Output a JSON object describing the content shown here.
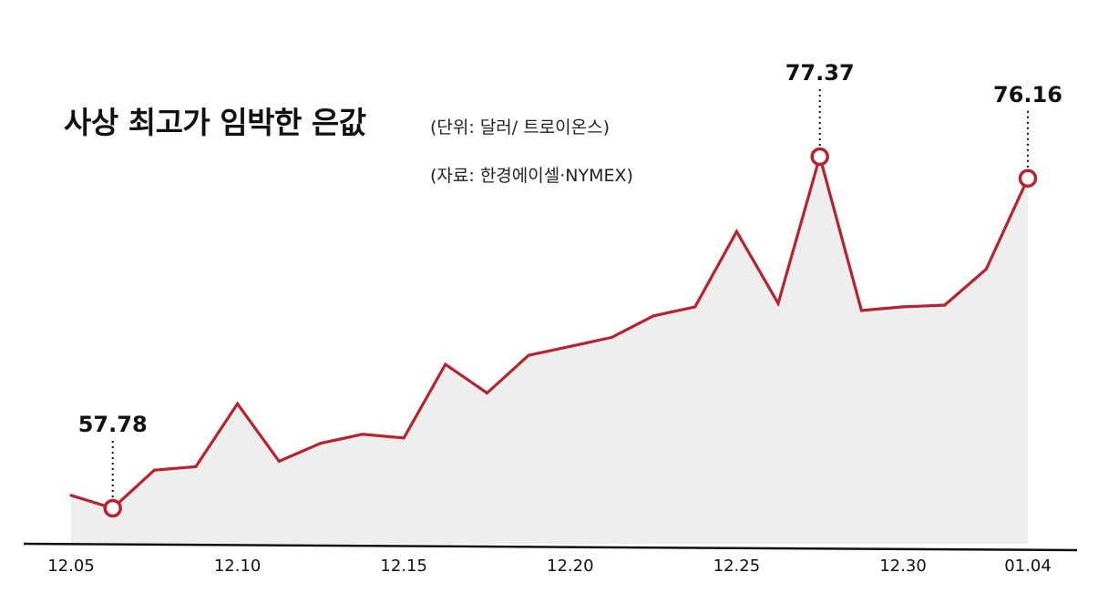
{
  "chart_data": {
    "type": "area",
    "title": "사상 최고가 임박한 은값",
    "unit_note": "(단위: 달러/ 트로이온스)",
    "source_note": "(자료: 한경에이셀·NYMEX)",
    "x_tick_labels": [
      "12.05",
      "12.10",
      "12.15",
      "12.20",
      "12.25",
      "12.30",
      "01.04"
    ],
    "series": [
      {
        "values": [
          58.5,
          57.78,
          59.9,
          60.1,
          63.6,
          60.4,
          61.4,
          61.9,
          61.7,
          65.8,
          64.2,
          66.3,
          66.8,
          67.3,
          68.5,
          69.0,
          73.2,
          69.2,
          77.37,
          68.8,
          69.0,
          69.1,
          71.1,
          76.16
        ]
      }
    ],
    "highlighted_points": [
      {
        "index": 1,
        "label": "57.78"
      },
      {
        "index": 18,
        "label": "77.37"
      },
      {
        "index": 23,
        "label": "76.16"
      }
    ],
    "colors": {
      "line": "#b5242f",
      "fill": "#eeeeee",
      "axis": "#111111",
      "marker_fill": "#ffffff"
    },
    "grid": false,
    "legend": "none"
  }
}
